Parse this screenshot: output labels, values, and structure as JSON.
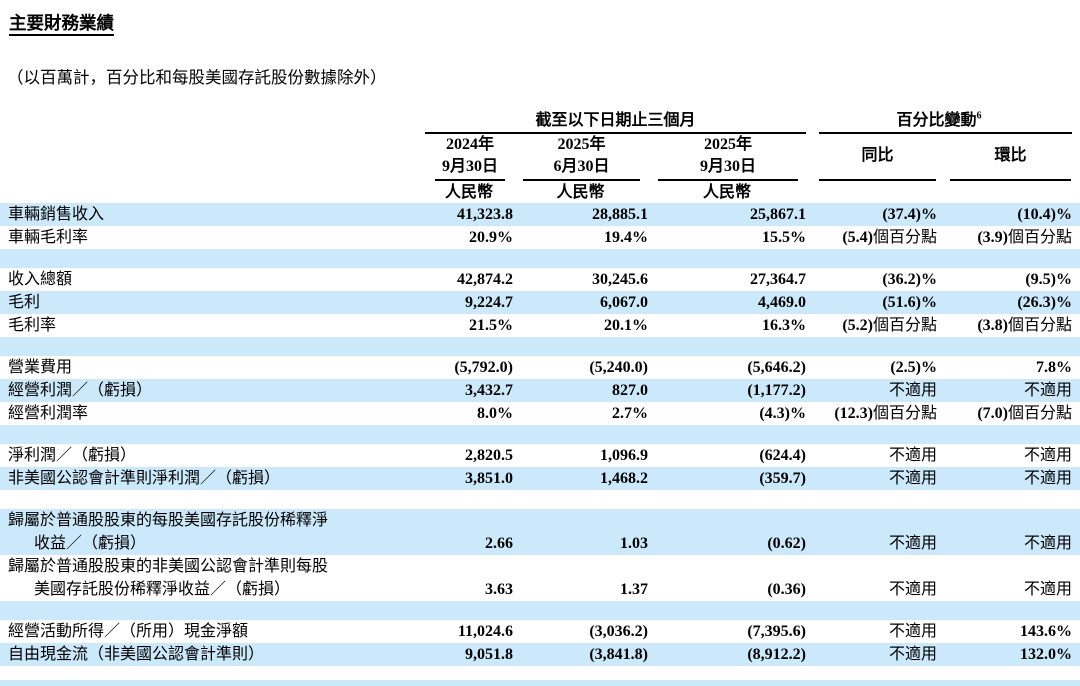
{
  "page": {
    "title": "主要財務業績",
    "subtitle": "（以百萬計，百分比和每股美國存託股份數據除外）"
  },
  "table": {
    "colors": {
      "row_band": "#cbe9fb",
      "rule": "#000000"
    },
    "header": {
      "period_group_label": "截至以下日期止三個月",
      "change_group_label": "百分比變動",
      "change_group_footnote": "6",
      "periods": [
        {
          "year": "2024年",
          "date": "9月30日",
          "currency": "人民幣"
        },
        {
          "year": "2025年",
          "date": "6月30日",
          "currency": "人民幣"
        },
        {
          "year": "2025年",
          "date": "9月30日",
          "currency": "人民幣"
        }
      ],
      "change_columns": [
        "同比",
        "環比"
      ]
    },
    "not_applicable_text": "不適用",
    "pct_point_suffix": "個百分點",
    "rows": [
      {
        "label": "車輛銷售收入",
        "values": [
          "41,323.8",
          "28,885.1",
          "25,867.1",
          "(37.4)%",
          "(10.4)%"
        ],
        "band": "blue"
      },
      {
        "label": "車輛毛利率",
        "values": [
          "20.9%",
          "19.4%",
          "15.5%",
          "(5.4)個百分點",
          "(3.9)個百分點"
        ],
        "band": "white"
      },
      {
        "blank": true,
        "band": "blue"
      },
      {
        "label": "收入總額",
        "values": [
          "42,874.2",
          "30,245.6",
          "27,364.7",
          "(36.2)%",
          "(9.5)%"
        ],
        "band": "white"
      },
      {
        "label": "毛利",
        "values": [
          "9,224.7",
          "6,067.0",
          "4,469.0",
          "(51.6)%",
          "(26.3)%"
        ],
        "band": "blue"
      },
      {
        "label": "毛利率",
        "values": [
          "21.5%",
          "20.1%",
          "16.3%",
          "(5.2)個百分點",
          "(3.8)個百分點"
        ],
        "band": "white"
      },
      {
        "blank": true,
        "band": "blue"
      },
      {
        "label": "營業費用",
        "values": [
          "(5,792.0)",
          "(5,240.0)",
          "(5,646.2)",
          "(2.5)%",
          "7.8%"
        ],
        "band": "white"
      },
      {
        "label": "經營利潤／（虧損）",
        "values": [
          "3,432.7",
          "827.0",
          "(1,177.2)",
          "不適用",
          "不適用"
        ],
        "band": "blue"
      },
      {
        "label": "經營利潤率",
        "values": [
          "8.0%",
          "2.7%",
          "(4.3)%",
          "(12.3)個百分點",
          "(7.0)個百分點"
        ],
        "band": "white"
      },
      {
        "blank": true,
        "band": "blue"
      },
      {
        "label": "淨利潤／（虧損）",
        "values": [
          "2,820.5",
          "1,096.9",
          "(624.4)",
          "不適用",
          "不適用"
        ],
        "band": "white"
      },
      {
        "label": "非美國公認會計準則淨利潤／（虧損）",
        "values": [
          "3,851.0",
          "1,468.2",
          "(359.7)",
          "不適用",
          "不適用"
        ],
        "band": "blue"
      },
      {
        "blank": true,
        "band": "white"
      },
      {
        "label": "歸屬於普通股股東的每股美國存託股份稀釋淨",
        "label2": "收益／（虧損）",
        "values": [
          "2.66",
          "1.03",
          "(0.62)",
          "不適用",
          "不適用"
        ],
        "band": "blue"
      },
      {
        "label": "歸屬於普通股股東的非美國公認會計準則每股",
        "label2": "美國存託股份稀釋淨收益／（虧損）",
        "values": [
          "3.63",
          "1.37",
          "(0.36)",
          "不適用",
          "不適用"
        ],
        "band": "white"
      },
      {
        "blank": true,
        "band": "blue"
      },
      {
        "label": "經營活動所得／（所用）現金淨額",
        "values": [
          "11,024.6",
          "(3,036.2)",
          "(7,395.6)",
          "不適用",
          "143.6%"
        ],
        "band": "white"
      },
      {
        "label": "自由現金流（非美國公認會計準則）",
        "values": [
          "9,051.8",
          "(3,841.8)",
          "(8,912.2)",
          "不適用",
          "132.0%"
        ],
        "band": "blue"
      }
    ]
  }
}
